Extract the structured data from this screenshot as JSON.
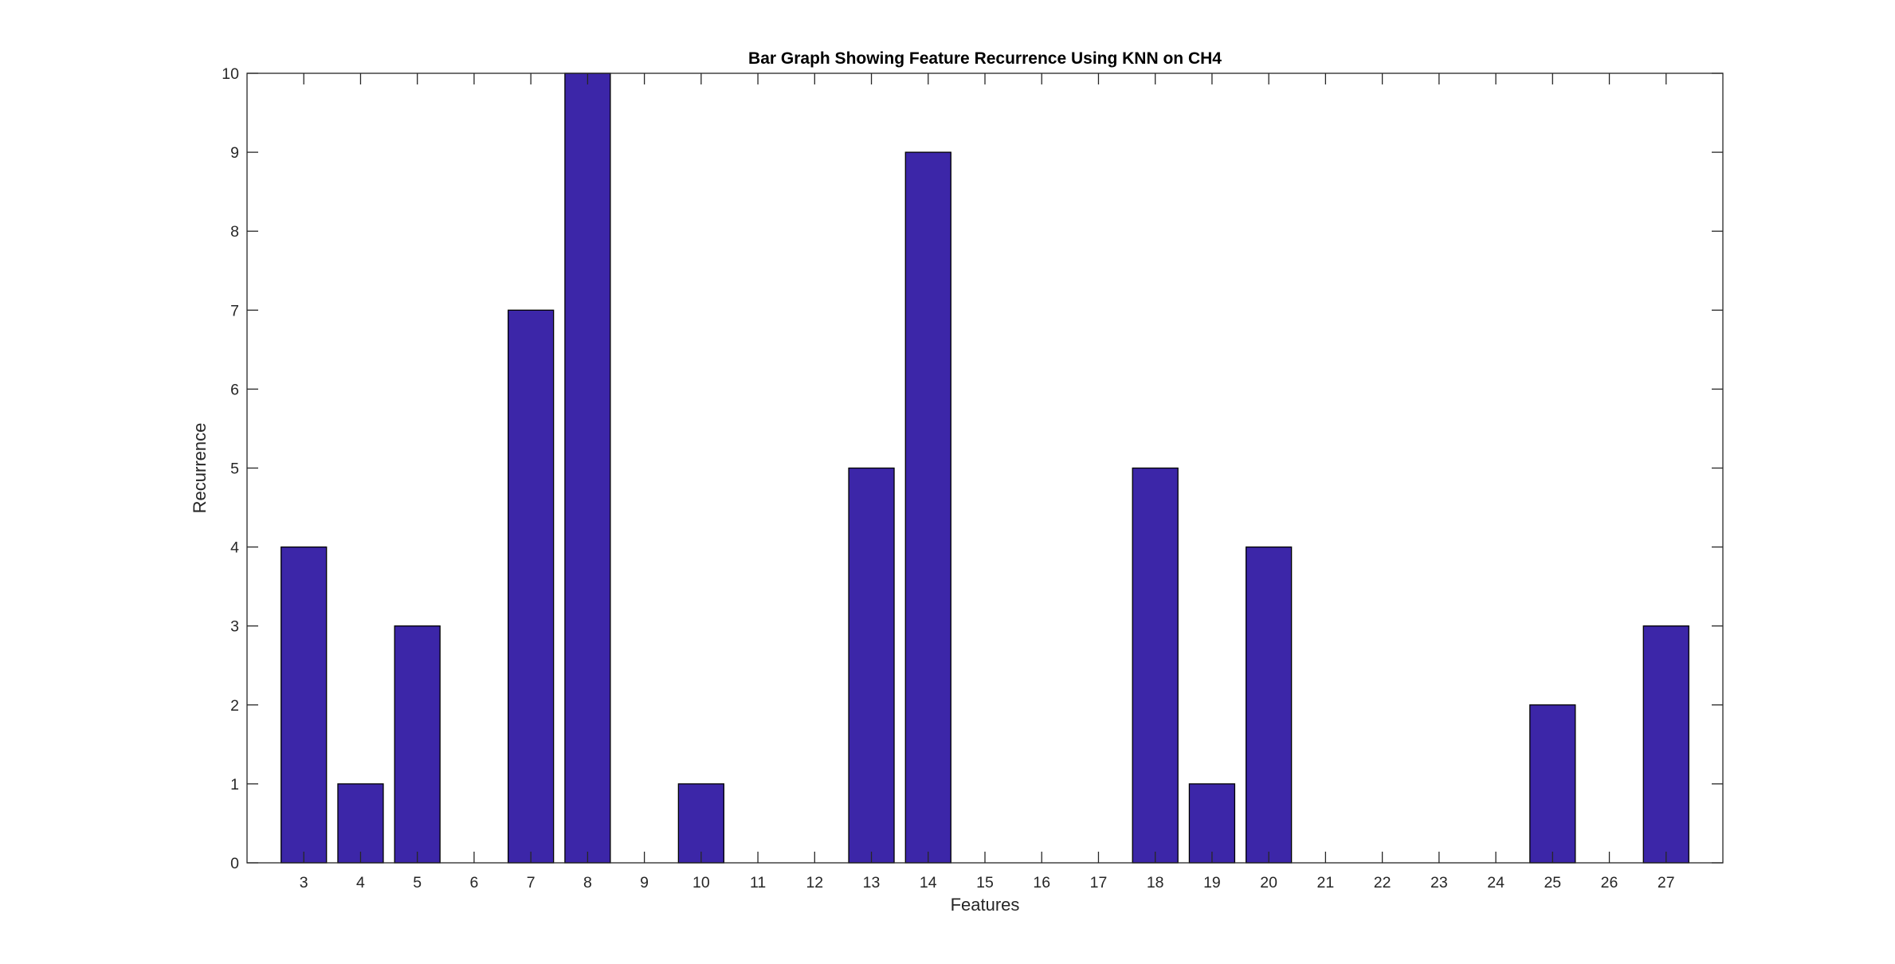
{
  "chart_data": {
    "type": "bar",
    "title": "Bar Graph Showing Feature Recurrence Using KNN on CH4",
    "xlabel": "Features",
    "ylabel": "Recurrence",
    "categories": [
      "3",
      "4",
      "5",
      "6",
      "7",
      "8",
      "9",
      "10",
      "11",
      "12",
      "13",
      "14",
      "15",
      "16",
      "17",
      "18",
      "19",
      "20",
      "21",
      "22",
      "23",
      "24",
      "25",
      "26",
      "27"
    ],
    "values": [
      4,
      1,
      3,
      0,
      7,
      10,
      0,
      1,
      0,
      0,
      5,
      9,
      0,
      0,
      0,
      5,
      1,
      4,
      0,
      0,
      0,
      0,
      2,
      0,
      3
    ],
    "ylim": [
      0,
      10
    ],
    "yticks": [
      0,
      1,
      2,
      3,
      4,
      5,
      6,
      7,
      8,
      9,
      10
    ],
    "grid": false,
    "bar_color": "#3c26a8"
  }
}
